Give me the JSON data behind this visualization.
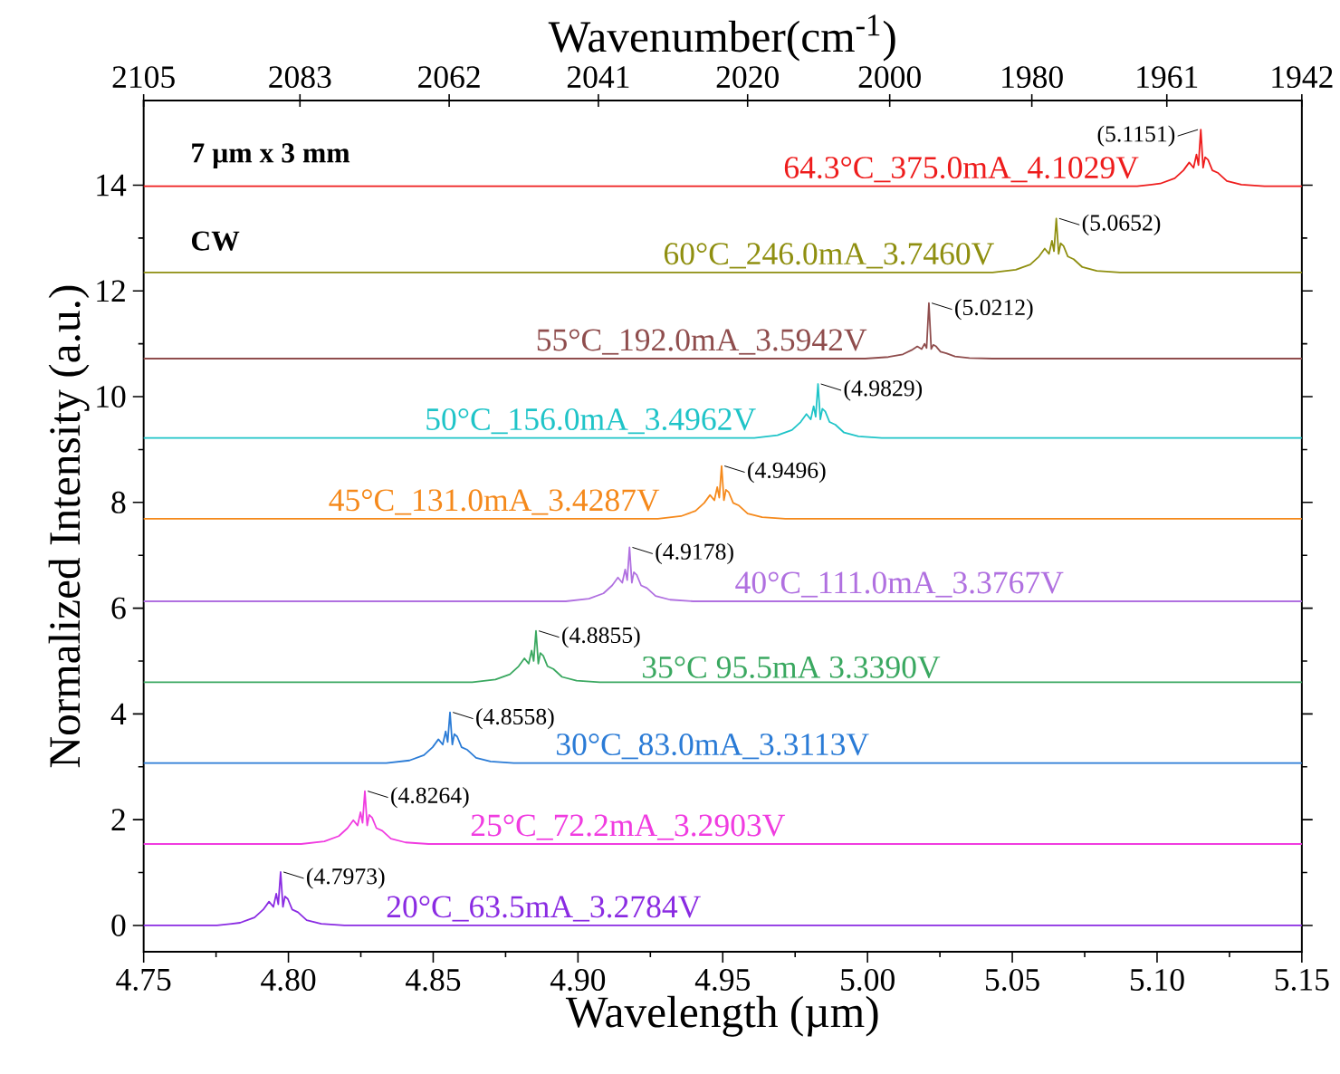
{
  "chart_data": {
    "type": "line",
    "xlabel": "Wavelength (µm)",
    "ylabel": "Normalized Intensity (a.u.)",
    "x2label": "Wavenumber(cm$^{-1}$)",
    "xlim": [
      4.75,
      5.15
    ],
    "ylim": [
      -0.5,
      15.6
    ],
    "x2lim": [
      2105,
      1942
    ],
    "xticks": [
      {
        "value": 4.75,
        "label": "4.75"
      },
      {
        "value": 4.8,
        "label": "4.80"
      },
      {
        "value": 4.85,
        "label": "4.85"
      },
      {
        "value": 4.9,
        "label": "4.90"
      },
      {
        "value": 4.95,
        "label": "4.95"
      },
      {
        "value": 5.0,
        "label": "5.00"
      },
      {
        "value": 5.05,
        "label": "5.05"
      },
      {
        "value": 5.1,
        "label": "5.10"
      },
      {
        "value": 5.15,
        "label": "5.15"
      }
    ],
    "yticks": [
      0,
      2,
      4,
      6,
      8,
      10,
      12,
      14
    ],
    "x2ticks": [
      2105,
      2083,
      2062,
      2041,
      2020,
      2000,
      1980,
      1961,
      1942
    ],
    "grid": false,
    "series": [
      {
        "name": "20°C_63.5mA_3.2784V",
        "color": "#8a2be2",
        "x": [
          4.75,
          4.7753,
          4.7833,
          4.7883,
          4.7913,
          4.7933,
          4.7948,
          4.7958,
          4.7965,
          4.7973,
          4.7981,
          4.7988,
          4.7998,
          4.8013,
          4.8033,
          4.8063,
          4.8113,
          4.8193,
          5.15
        ],
        "values": [
          0,
          0,
          0.05,
          0.15,
          0.3,
          0.45,
          0.35,
          0.6,
          0.4,
          1.01,
          0.35,
          0.55,
          0.5,
          0.3,
          0.25,
          0.1,
          0.03,
          0,
          0
        ]
      },
      {
        "name": "25°C_72.2mA_3.2903V",
        "color": "#f03ce0",
        "x": [
          4.75,
          4.8044,
          4.8124,
          4.8174,
          4.8204,
          4.8224,
          4.8239,
          4.8249,
          4.8256,
          4.8264,
          4.8272,
          4.8279,
          4.8289,
          4.8304,
          4.8324,
          4.8354,
          4.8404,
          4.8484,
          5.15
        ],
        "values": [
          1.54,
          1.54,
          1.59,
          1.69,
          1.84,
          1.99,
          1.89,
          2.14,
          1.94,
          2.54,
          1.89,
          2.09,
          2.04,
          1.84,
          1.79,
          1.64,
          1.57,
          1.54,
          1.54
        ]
      },
      {
        "name": "30°C_83.0mA_3.3113V",
        "color": "#2a7bd6",
        "x": [
          4.75,
          4.8338,
          4.8418,
          4.8468,
          4.8498,
          4.8518,
          4.8533,
          4.8543,
          4.855,
          4.8558,
          4.8566,
          4.8573,
          4.8583,
          4.8598,
          4.8618,
          4.8648,
          4.8698,
          4.8778,
          5.15
        ],
        "values": [
          3.07,
          3.07,
          3.12,
          3.22,
          3.37,
          3.52,
          3.42,
          3.67,
          3.47,
          4.03,
          3.42,
          3.62,
          3.57,
          3.37,
          3.32,
          3.17,
          3.1,
          3.07,
          3.07
        ]
      },
      {
        "name": "35°C 95.5mA 3.3390V",
        "color": "#3aa860",
        "x": [
          4.75,
          4.8635,
          4.8715,
          4.8765,
          4.8795,
          4.8815,
          4.883,
          4.884,
          4.8847,
          4.8855,
          4.8863,
          4.887,
          4.888,
          4.8895,
          4.8915,
          4.8945,
          4.8995,
          4.9075,
          5.15
        ],
        "values": [
          4.6,
          4.6,
          4.65,
          4.75,
          4.9,
          5.05,
          4.95,
          5.2,
          5.0,
          5.57,
          4.95,
          5.15,
          5.1,
          4.9,
          4.85,
          4.7,
          4.63,
          4.6,
          4.6
        ]
      },
      {
        "name": "40°C_111.0mA_3.3767V",
        "color": "#b070e0",
        "x": [
          4.75,
          4.8958,
          4.9038,
          4.9088,
          4.9118,
          4.9138,
          4.9153,
          4.9163,
          4.917,
          4.9178,
          4.9186,
          4.9193,
          4.9203,
          4.9218,
          4.9238,
          4.9268,
          4.9318,
          4.9398,
          5.15
        ],
        "values": [
          6.13,
          6.13,
          6.18,
          6.28,
          6.43,
          6.58,
          6.48,
          6.73,
          6.53,
          7.15,
          6.48,
          6.68,
          6.63,
          6.43,
          6.38,
          6.23,
          6.16,
          6.13,
          6.13
        ]
      },
      {
        "name": "45°C_131.0mA_3.4287V",
        "color": "#f5891b",
        "x": [
          4.75,
          4.9276,
          4.9356,
          4.9406,
          4.9436,
          4.9456,
          4.9471,
          4.9481,
          4.9488,
          4.9496,
          4.9504,
          4.9511,
          4.9521,
          4.9536,
          4.9556,
          4.9586,
          4.9636,
          4.9716,
          5.15
        ],
        "values": [
          7.69,
          7.69,
          7.74,
          7.84,
          7.99,
          8.14,
          8.04,
          8.29,
          8.09,
          8.69,
          8.04,
          8.24,
          8.19,
          7.99,
          7.94,
          7.79,
          7.72,
          7.69,
          7.69
        ]
      },
      {
        "name": "50°C_156.0mA_3.4962V",
        "color": "#1fc4c8",
        "x": [
          4.75,
          4.9609,
          4.9689,
          4.9739,
          4.9769,
          4.9789,
          4.9804,
          4.9814,
          4.9821,
          4.9829,
          4.9837,
          4.9844,
          4.9854,
          4.9869,
          4.9889,
          4.9919,
          4.9969,
          5.0049,
          5.15
        ],
        "values": [
          9.22,
          9.22,
          9.27,
          9.37,
          9.52,
          9.67,
          9.57,
          9.82,
          9.62,
          10.24,
          9.57,
          9.77,
          9.72,
          9.52,
          9.47,
          9.32,
          9.25,
          9.22,
          9.22
        ]
      },
      {
        "name": "55°C_192.0mA_3.5942V",
        "color": "#8f4d4d",
        "x": [
          4.75,
          4.9992,
          5.0072,
          5.0122,
          5.0152,
          5.0172,
          5.0187,
          5.0197,
          5.0204,
          5.0212,
          5.022,
          5.0227,
          5.0237,
          5.0252,
          5.0272,
          5.0302,
          5.0352,
          5.0432,
          5.15
        ],
        "values": [
          10.72,
          10.72,
          10.75,
          10.8,
          10.88,
          10.95,
          10.9,
          11.0,
          10.92,
          11.77,
          10.9,
          10.98,
          10.95,
          10.85,
          10.82,
          10.76,
          10.73,
          10.72,
          10.72
        ]
      },
      {
        "name": "60°C_246.0mA_3.7460V",
        "color": "#8f8f10",
        "x": [
          4.75,
          5.0432,
          5.0512,
          5.0562,
          5.0592,
          5.0612,
          5.0627,
          5.0637,
          5.0644,
          5.0652,
          5.066,
          5.0667,
          5.0677,
          5.0692,
          5.0712,
          5.0742,
          5.0792,
          5.0872,
          5.15
        ],
        "values": [
          12.35,
          12.35,
          12.4,
          12.5,
          12.65,
          12.8,
          12.7,
          12.95,
          12.75,
          13.37,
          12.7,
          12.9,
          12.85,
          12.65,
          12.6,
          12.45,
          12.38,
          12.35,
          12.35
        ]
      },
      {
        "name": "64.3°C_375.0mA_4.1029V",
        "color": "#ee1c1c",
        "x": [
          4.75,
          5.0931,
          5.1011,
          5.1061,
          5.1091,
          5.1111,
          5.1126,
          5.1136,
          5.1143,
          5.1151,
          5.1159,
          5.1166,
          5.1176,
          5.1191,
          5.1211,
          5.1241,
          5.1291,
          5.1371,
          5.15
        ],
        "values": [
          13.98,
          13.98,
          14.03,
          14.13,
          14.28,
          14.43,
          14.33,
          14.58,
          14.38,
          15.05,
          14.33,
          14.53,
          14.48,
          14.28,
          14.23,
          14.08,
          14.01,
          13.98,
          13.98
        ]
      }
    ],
    "annotations": [
      "7 µm x 3 mm",
      "CW",
      {
        "text": "(4.7973)",
        "x": 4.7973,
        "y": 1.01
      },
      {
        "text": "(4.8264)",
        "x": 4.8264,
        "y": 2.54
      },
      {
        "text": "(4.8558)",
        "x": 4.8558,
        "y": 4.03
      },
      {
        "text": "(4.8855)",
        "x": 4.8855,
        "y": 5.57
      },
      {
        "text": "(4.9178)",
        "x": 4.9178,
        "y": 7.15
      },
      {
        "text": "(4.9496)",
        "x": 4.9496,
        "y": 8.69
      },
      {
        "text": "(4.9829)",
        "x": 4.9829,
        "y": 10.24
      },
      {
        "text": "(5.0212)",
        "x": 5.0212,
        "y": 11.77
      },
      {
        "text": "(5.0652)",
        "x": 5.0652,
        "y": 13.37
      },
      {
        "text": "(5.1151)",
        "x": 5.1151,
        "y": 15.05
      }
    ]
  }
}
